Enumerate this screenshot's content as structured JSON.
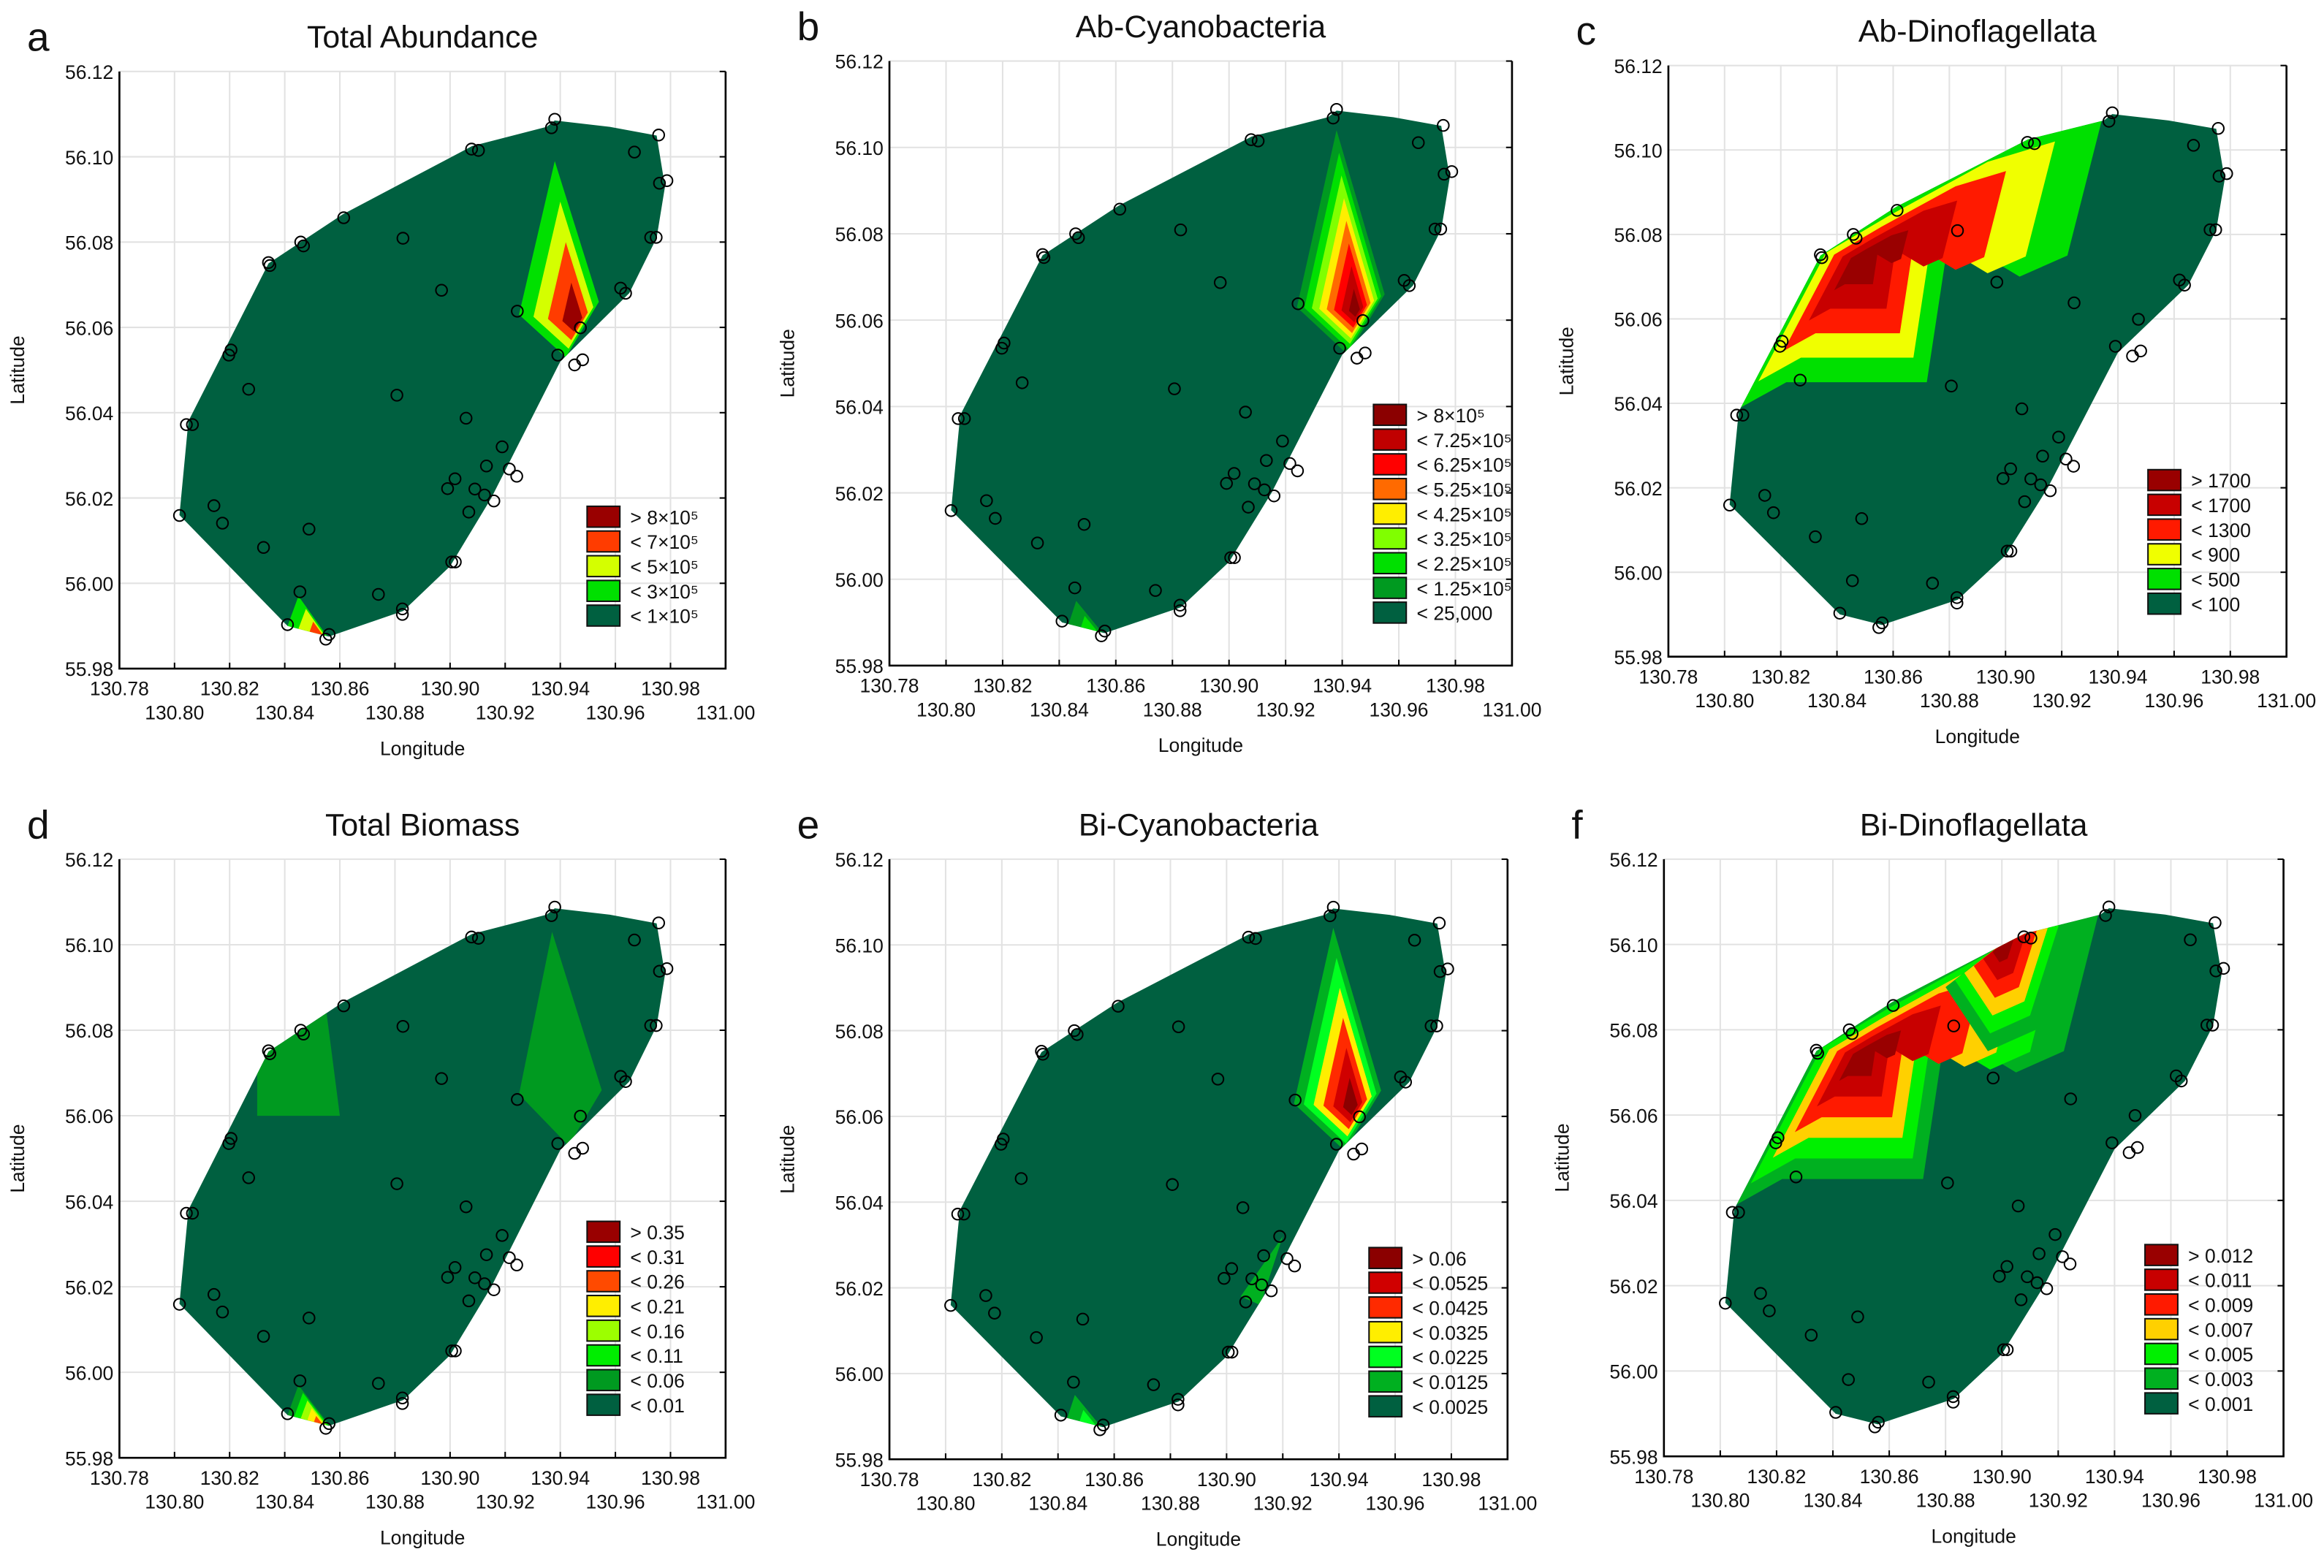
{
  "chart_data": [
    {
      "type": "heatmap",
      "letter": "a",
      "title": "Total Abundance",
      "xlabel": "Longitude",
      "ylabel": "Latitude",
      "legend": [
        {
          "label": "> 8×10⁵",
          "color": "#990000"
        },
        {
          "label": "< 7×10⁵",
          "color": "#ff3c00"
        },
        {
          "label": "< 5×10⁵",
          "color": "#d4ff00"
        },
        {
          "label": "< 3×10⁵",
          "color": "#00e000"
        },
        {
          "label": "< 1×10⁵",
          "color": "#006040"
        }
      ],
      "hotspots": [
        {
          "peak": [
            130.946,
            56.061
          ],
          "levels": 5,
          "outline": [
            [
              130.938,
              56.099
            ],
            [
              130.925,
              56.063
            ],
            [
              130.942,
              56.053
            ],
            [
              130.954,
              56.066
            ]
          ]
        },
        {
          "peak": [
            130.853,
            55.988
          ],
          "levels": 4,
          "outline": [
            [
              130.845,
              55.997
            ],
            [
              130.841,
              55.99
            ],
            [
              130.856,
              55.987
            ]
          ]
        }
      ]
    },
    {
      "type": "heatmap",
      "letter": "b",
      "title": "Ab-Cyanobacteria",
      "xlabel": "Longitude",
      "ylabel": "Latitude",
      "legend": [
        {
          "label": "> 8×10⁵",
          "color": "#8b0000"
        },
        {
          "label": "< 7.25×10⁵",
          "color": "#c00000"
        },
        {
          "label": "< 6.25×10⁵",
          "color": "#ff0000"
        },
        {
          "label": "< 5.25×10⁵",
          "color": "#ff6a00"
        },
        {
          "label": "< 4.25×10⁵",
          "color": "#ffee00"
        },
        {
          "label": "< 3.25×10⁵",
          "color": "#80ff00"
        },
        {
          "label": "< 2.25×10⁵",
          "color": "#00e000"
        },
        {
          "label": "< 1.25×10⁵",
          "color": "#009a20"
        },
        {
          "label": "< 25,000",
          "color": "#006040"
        }
      ],
      "hotspots": [
        {
          "peak": [
            130.945,
            56.062
          ],
          "levels": 9,
          "outline": [
            [
              130.938,
              56.104
            ],
            [
              130.924,
              56.063
            ],
            [
              130.942,
              56.052
            ],
            [
              130.955,
              56.066
            ]
          ]
        },
        {
          "peak": [
            130.852,
            55.988
          ],
          "levels": 3,
          "outline": [
            [
              130.846,
              55.995
            ],
            [
              130.843,
              55.989
            ],
            [
              130.856,
              55.987
            ]
          ]
        }
      ]
    },
    {
      "type": "heatmap",
      "letter": "c",
      "title": "Ab-Dinoflagellata",
      "xlabel": "Longitude",
      "ylabel": "Latitude",
      "legend": [
        {
          "label": "> 1700",
          "color": "#990000"
        },
        {
          "label": "< 1700",
          "color": "#c80000"
        },
        {
          "label": "< 1300",
          "color": "#ff1a00"
        },
        {
          "label": "< 900",
          "color": "#f0ff00"
        },
        {
          "label": "< 500",
          "color": "#00e000"
        },
        {
          "label": "< 100",
          "color": "#006040"
        }
      ],
      "hotspots": [
        {
          "peak": [
            130.848,
            56.074
          ],
          "levels": 6,
          "outline": [
            [
              130.803,
              56.038
            ],
            [
              130.833,
              56.076
            ],
            [
              130.861,
              56.087
            ],
            [
              130.905,
              56.103
            ],
            [
              130.935,
              56.109
            ],
            [
              130.922,
              56.075
            ],
            [
              130.905,
              56.07
            ],
            [
              130.88,
              56.08
            ],
            [
              130.872,
              56.045
            ],
            [
              130.822,
              56.045
            ]
          ]
        }
      ]
    },
    {
      "type": "heatmap",
      "letter": "d",
      "title": "Total Biomass",
      "xlabel": "Longitude",
      "ylabel": "Latitude",
      "legend": [
        {
          "label": "> 0.35",
          "color": "#990000"
        },
        {
          "label": "< 0.31",
          "color": "#ff0000"
        },
        {
          "label": "< 0.26",
          "color": "#ff4a00"
        },
        {
          "label": "< 0.21",
          "color": "#ffee00"
        },
        {
          "label": "< 0.16",
          "color": "#9cff00"
        },
        {
          "label": "< 0.11",
          "color": "#00ee00"
        },
        {
          "label": "< 0.06",
          "color": "#009a20"
        },
        {
          "label": "< 0.01",
          "color": "#006040"
        }
      ],
      "hotspots": [
        {
          "peak": [
            130.853,
            55.988
          ],
          "levels": 6,
          "outline": [
            [
              130.845,
              55.997
            ],
            [
              130.841,
              55.99
            ],
            [
              130.857,
              55.987
            ]
          ]
        },
        {
          "peak": [
            130.943,
            56.058
          ],
          "levels": 2,
          "outline": [
            [
              130.937,
              56.103
            ],
            [
              130.925,
              56.065
            ],
            [
              130.943,
              56.053
            ],
            [
              130.955,
              56.066
            ]
          ]
        },
        {
          "peak": [
            130.848,
            56.07
          ],
          "levels": 2,
          "outline": [
            [
              130.83,
              56.075
            ],
            [
              130.855,
              56.085
            ],
            [
              130.86,
              56.06
            ],
            [
              130.83,
              56.06
            ]
          ]
        }
      ]
    },
    {
      "type": "heatmap",
      "letter": "e",
      "title": "Bi-Cyanobacteria",
      "xlabel": "Longitude",
      "ylabel": "Latitude",
      "legend": [
        {
          "label": "> 0.06",
          "color": "#8b0000"
        },
        {
          "label": "< 0.0525",
          "color": "#d00000"
        },
        {
          "label": "< 0.0425",
          "color": "#ff2a00"
        },
        {
          "label": "< 0.0325",
          "color": "#ffee00"
        },
        {
          "label": "< 0.0225",
          "color": "#00ff20"
        },
        {
          "label": "< 0.0125",
          "color": "#00b020"
        },
        {
          "label": "< 0.0025",
          "color": "#006040"
        }
      ],
      "hotspots": [
        {
          "peak": [
            130.945,
            56.062
          ],
          "levels": 7,
          "outline": [
            [
              130.938,
              56.104
            ],
            [
              130.924,
              56.063
            ],
            [
              130.942,
              56.052
            ],
            [
              130.955,
              56.066
            ]
          ]
        },
        {
          "peak": [
            130.852,
            55.988
          ],
          "levels": 3,
          "outline": [
            [
              130.846,
              55.995
            ],
            [
              130.843,
              55.989
            ],
            [
              130.856,
              55.987
            ]
          ]
        },
        {
          "peak": [
            130.91,
            56.022
          ],
          "levels": 2,
          "outline": [
            [
              130.92,
              56.032
            ],
            [
              130.905,
              56.018
            ],
            [
              130.912,
              56.016
            ]
          ]
        }
      ]
    },
    {
      "type": "heatmap",
      "letter": "f",
      "title": "Bi-Dinoflagellata",
      "xlabel": "Longitude",
      "ylabel": "Latitude",
      "legend": [
        {
          "label": "> 0.012",
          "color": "#990000"
        },
        {
          "label": "< 0.011",
          "color": "#c80000"
        },
        {
          "label": "< 0.009",
          "color": "#ff1a00"
        },
        {
          "label": "< 0.007",
          "color": "#ffd000"
        },
        {
          "label": "< 0.005",
          "color": "#00f000"
        },
        {
          "label": "< 0.003",
          "color": "#00b020"
        },
        {
          "label": "< 0.001",
          "color": "#006040"
        }
      ],
      "hotspots": [
        {
          "peak": [
            130.85,
            56.074
          ],
          "levels": 7,
          "outline": [
            [
              130.803,
              56.038
            ],
            [
              130.833,
              56.076
            ],
            [
              130.861,
              56.087
            ],
            [
              130.905,
              56.103
            ],
            [
              130.935,
              56.109
            ],
            [
              130.922,
              56.075
            ],
            [
              130.905,
              56.07
            ],
            [
              130.88,
              56.08
            ],
            [
              130.872,
              56.045
            ],
            [
              130.822,
              56.045
            ]
          ]
        },
        {
          "peak": [
            130.9,
            56.1
          ],
          "levels": 7,
          "outline": [
            [
              130.88,
              56.09
            ],
            [
              130.905,
              56.103
            ],
            [
              130.925,
              56.107
            ],
            [
              130.912,
              56.08
            ],
            [
              130.895,
              56.075
            ]
          ]
        }
      ]
    }
  ],
  "axes": {
    "xlim": [
      130.78,
      131.0
    ],
    "ylim": [
      55.98,
      56.12
    ],
    "xticks": [
      "130.78",
      "130.80",
      "130.82",
      "130.84",
      "130.86",
      "130.88",
      "130.90",
      "130.92",
      "130.94",
      "130.96",
      "130.98",
      "131.00"
    ],
    "yticks": [
      "55.98",
      "56.00",
      "56.02",
      "56.04",
      "56.06",
      "56.08",
      "56.10",
      "56.12"
    ]
  },
  "boundary": [
    [
      130.8018,
      56.016
    ],
    [
      130.805,
      56.038
    ],
    [
      130.8341,
      56.075
    ],
    [
      130.861,
      56.0865
    ],
    [
      130.908,
      56.1025
    ],
    [
      130.935,
      56.107
    ],
    [
      130.938,
      56.1085
    ],
    [
      130.958,
      56.107
    ],
    [
      130.975,
      56.105
    ],
    [
      130.978,
      56.093
    ],
    [
      130.975,
      56.081
    ],
    [
      130.965,
      56.068
    ],
    [
      130.94,
      56.052
    ],
    [
      130.915,
      56.02
    ],
    [
      130.9,
      56.004
    ],
    [
      130.883,
      55.9935
    ],
    [
      130.856,
      55.9875
    ],
    [
      130.841,
      55.99
    ]
  ],
  "stations": [
    [
      130.8018,
      56.0159
    ],
    [
      130.8043,
      56.0372
    ],
    [
      130.8065,
      56.0372
    ],
    [
      130.8143,
      56.0182
    ],
    [
      130.8174,
      56.0141
    ],
    [
      130.8197,
      56.0535
    ],
    [
      130.8205,
      56.0547
    ],
    [
      130.8269,
      56.0455
    ],
    [
      130.8323,
      56.0084
    ],
    [
      130.8341,
      56.0752
    ],
    [
      130.8346,
      56.0745
    ],
    [
      130.841,
      55.9903
    ],
    [
      130.8455,
      55.998
    ],
    [
      130.8458,
      56.08
    ],
    [
      130.8468,
      56.0791
    ],
    [
      130.8488,
      56.0127
    ],
    [
      130.8549,
      55.9869
    ],
    [
      130.8561,
      55.988
    ],
    [
      130.8614,
      56.0857
    ],
    [
      130.874,
      55.9974
    ],
    [
      130.8807,
      56.0441
    ],
    [
      130.8827,
      55.994
    ],
    [
      130.8827,
      55.9927
    ],
    [
      130.8829,
      56.0809
    ],
    [
      130.8969,
      56.0687
    ],
    [
      130.8991,
      56.0222
    ],
    [
      130.9006,
      56.005
    ],
    [
      130.9019,
      56.005
    ],
    [
      130.9018,
      56.0245
    ],
    [
      130.9058,
      56.0387
    ],
    [
      130.9068,
      56.0167
    ],
    [
      130.9078,
      56.1018
    ],
    [
      130.9103,
      56.1015
    ],
    [
      130.909,
      56.0221
    ],
    [
      130.9125,
      56.0207
    ],
    [
      130.9132,
      56.0275
    ],
    [
      130.9159,
      56.0193
    ],
    [
      130.9189,
      56.032
    ],
    [
      130.9215,
      56.0268
    ],
    [
      130.9242,
      56.0251
    ],
    [
      130.9244,
      56.0638
    ],
    [
      130.9368,
      56.1068
    ],
    [
      130.938,
      56.1088
    ],
    [
      130.9391,
      56.0535
    ],
    [
      130.9452,
      56.0512
    ],
    [
      130.9473,
      56.0599
    ],
    [
      130.9481,
      56.0524
    ],
    [
      130.9619,
      56.0692
    ],
    [
      130.9637,
      56.068
    ],
    [
      130.9669,
      56.1011
    ],
    [
      130.9728,
      56.0811
    ],
    [
      130.9748,
      56.0811
    ],
    [
      130.9757,
      56.1051
    ],
    [
      130.976,
      56.0938
    ],
    [
      130.9787,
      56.0944
    ]
  ]
}
